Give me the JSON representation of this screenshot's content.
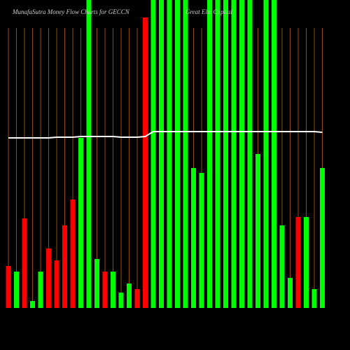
{
  "chart_data": {
    "type": "bar",
    "title": "MunafaSutra  Money  Flow  Charts for GECCN",
    "subtitle": "Great Elm Capital",
    "categories": [
      null,
      null,
      null,
      null,
      null,
      null,
      null,
      null,
      null,
      null,
      null,
      null,
      null,
      null,
      null,
      null,
      null,
      null,
      null,
      null,
      null,
      null,
      null,
      null,
      null,
      null,
      null,
      null,
      null,
      null,
      null,
      null,
      null,
      null,
      null,
      null,
      null,
      null,
      null,
      null
    ],
    "values": [
      60,
      52,
      128,
      10,
      52,
      85,
      68,
      118,
      155,
      243,
      440,
      70,
      52,
      52,
      22,
      35,
      27,
      415,
      440,
      440,
      440,
      440,
      440,
      200,
      193,
      440,
      440,
      440,
      440,
      440,
      440,
      220,
      440,
      440,
      118,
      43,
      130,
      130,
      27,
      200
    ],
    "colors": [
      "#ff0000",
      "#00ff00",
      "#ff0000",
      "#00ff00",
      "#00ff00",
      "#ff0000",
      "#ff0000",
      "#ff0000",
      "#ff0000",
      "#00ff00",
      "#00ff00",
      "#00ff00",
      "#ff0000",
      "#00ff00",
      "#00ff00",
      "#00ff00",
      "#ff0000",
      "#ff0000",
      "#00ff00",
      "#00ff00",
      "#00ff00",
      "#00ff00",
      "#00ff00",
      "#00ff00",
      "#00ff00",
      "#00ff00",
      "#00ff00",
      "#00ff00",
      "#00ff00",
      "#00ff00",
      "#00ff00",
      "#00ff00",
      "#00ff00",
      "#00ff00",
      "#00ff00",
      "#00ff00",
      "#ff0000",
      "#00ff00",
      "#00ff00",
      "#00ff00"
    ],
    "line": {
      "color": "#ffffff",
      "values": [
        243,
        243,
        243,
        243,
        243,
        243,
        244,
        244,
        244,
        245,
        245,
        245,
        245,
        245,
        244,
        244,
        244,
        245,
        252,
        252,
        252,
        252,
        252,
        252,
        252,
        252,
        252,
        252,
        252,
        252,
        252,
        252,
        252,
        252,
        252,
        252,
        252,
        252,
        252,
        251
      ]
    },
    "ylim": [
      0,
      440
    ],
    "grid_color": "#b8600b"
  }
}
